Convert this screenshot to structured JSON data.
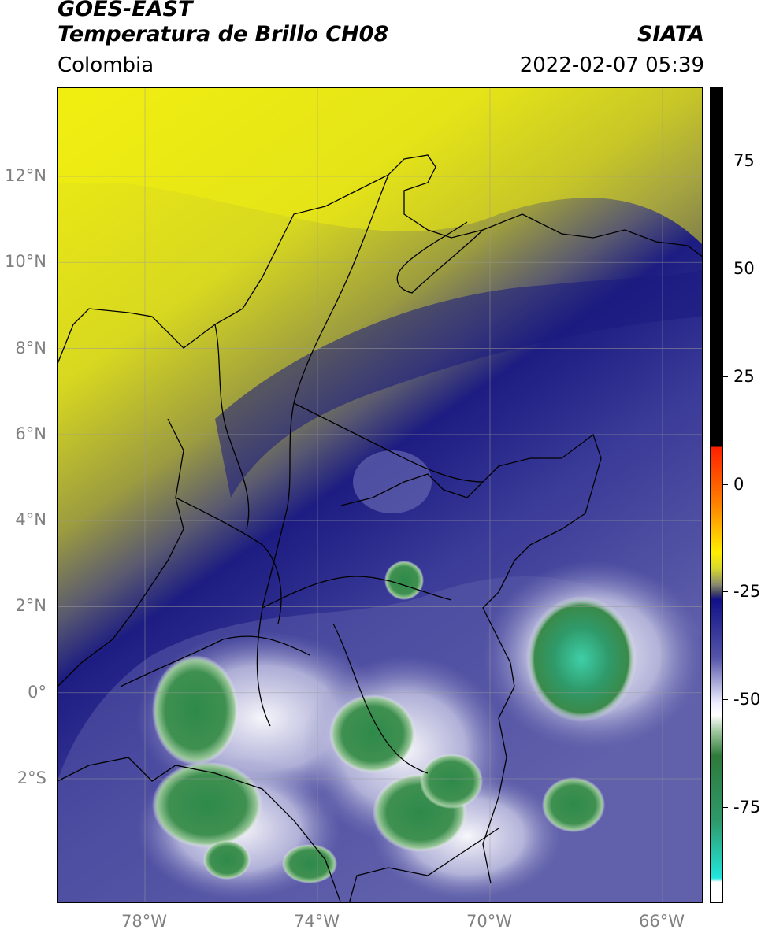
{
  "header": {
    "satellite": "GOES-EAST",
    "product": "Temperatura de Brillo CH08",
    "brand": "SIATA",
    "region": "Colombia",
    "datetime": "2022-02-07 05:39"
  },
  "map": {
    "lat_ticks": [
      {
        "value": 12,
        "label": "12°N"
      },
      {
        "value": 10,
        "label": "10°N"
      },
      {
        "value": 8,
        "label": "8°N"
      },
      {
        "value": 6,
        "label": "6°N"
      },
      {
        "value": 4,
        "label": "4°N"
      },
      {
        "value": 2,
        "label": "2°N"
      },
      {
        "value": 0,
        "label": "0°"
      },
      {
        "value": -2,
        "label": "2°S"
      }
    ],
    "lon_ticks": [
      {
        "value": -78,
        "label": "78°W"
      },
      {
        "value": -74,
        "label": "74°W"
      },
      {
        "value": -70,
        "label": "70°W"
      },
      {
        "value": -66,
        "label": "66°W"
      }
    ],
    "extent": {
      "lon_min": -80,
      "lon_max": -65,
      "lat_min": -5,
      "lat_max": 14
    },
    "colors": {
      "warm": "#e6e61a",
      "olive": "#8a8a3a",
      "navy": "#1a1a80",
      "mid_blue": "#4a4aa0",
      "lavender": "#b8b8dd",
      "white": "#ffffff",
      "green": "#3a8a4a",
      "teal": "#33bb99"
    }
  },
  "colorbar": {
    "ticks": [
      {
        "value": 75,
        "label": "75"
      },
      {
        "value": 50,
        "label": "50"
      },
      {
        "value": 25,
        "label": "25"
      },
      {
        "value": 0,
        "label": "0"
      },
      {
        "value": -25,
        "label": "-25"
      },
      {
        "value": -50,
        "label": "-50"
      },
      {
        "value": -75,
        "label": "-75"
      }
    ],
    "range": [
      -95,
      90
    ]
  }
}
